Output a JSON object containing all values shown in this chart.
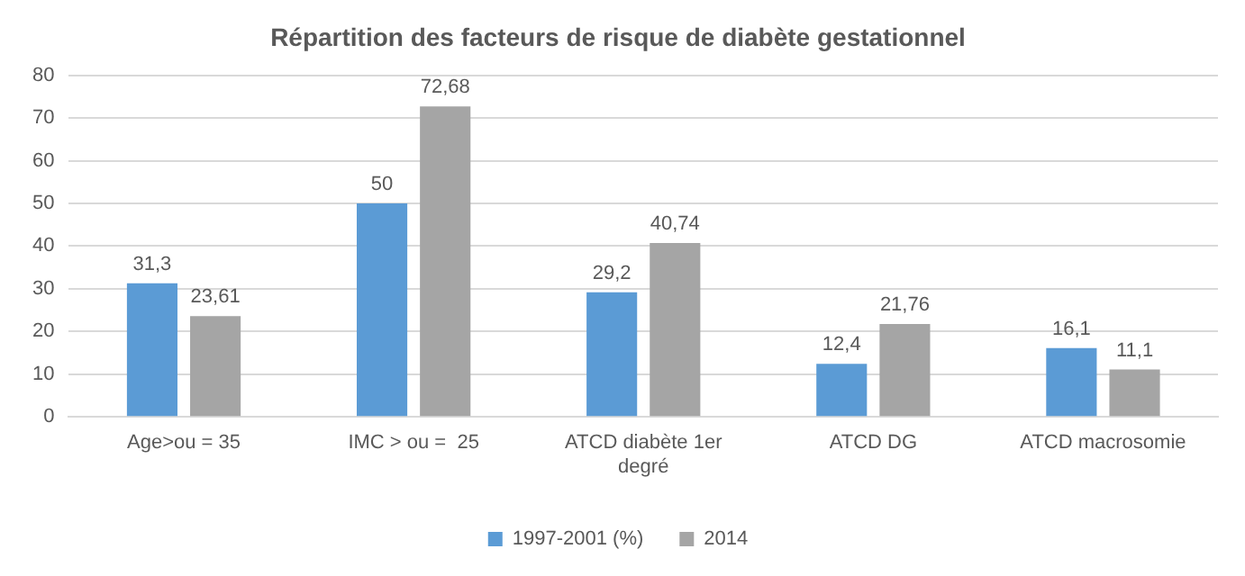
{
  "chart_data": {
    "type": "bar",
    "title": "Répartition des facteurs de risque de diabète gestationnel",
    "categories": [
      "Age>ou = 35",
      "IMC > ou =  25",
      "ATCD diabète 1er degré",
      "ATCD DG",
      "ATCD macrosomie"
    ],
    "series": [
      {
        "name": "1997-2001 (%)",
        "color": "#5b9bd5",
        "values": [
          31.3,
          50,
          29.2,
          12.4,
          16.1
        ],
        "value_labels": [
          "31,3",
          "50",
          "29,2",
          "12,4",
          "16,1"
        ]
      },
      {
        "name": "2014",
        "color": "#a5a5a5",
        "values": [
          23.61,
          72.68,
          40.74,
          21.76,
          11.1
        ],
        "value_labels": [
          "23,61",
          "72,68",
          "40,74",
          "21,76",
          "11,1"
        ]
      }
    ],
    "ylim": [
      0,
      80
    ],
    "yticks": [
      0,
      10,
      20,
      30,
      40,
      50,
      60,
      70,
      80
    ],
    "grid": "y",
    "legend": "bottom"
  }
}
